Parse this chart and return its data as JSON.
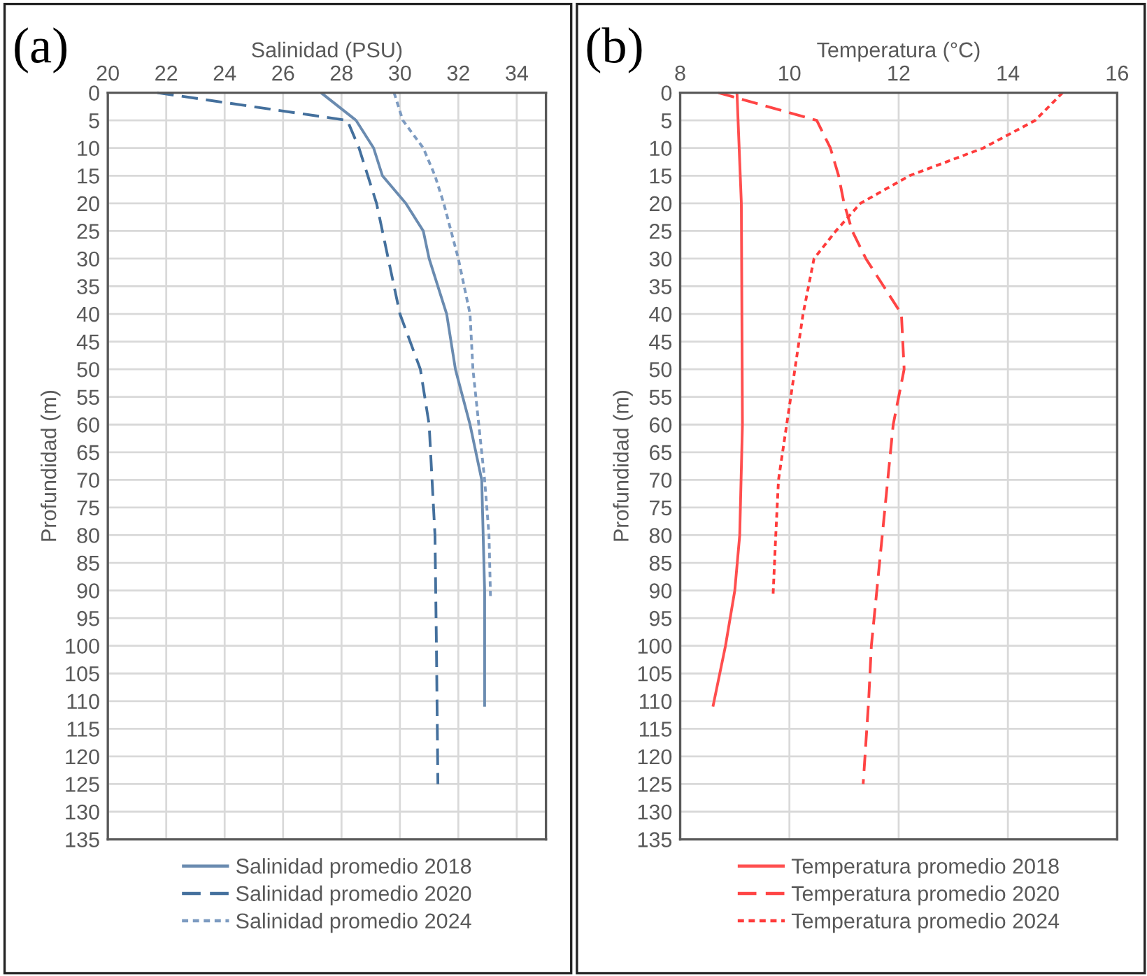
{
  "chart_data": [
    {
      "type": "line",
      "xlabel": "Salinidad (PSU)",
      "ylabel": "Profundidad (m)",
      "annotations": [
        "(a)"
      ],
      "xlim": [
        20,
        35
      ],
      "xticks": [
        20,
        22,
        24,
        26,
        28,
        30,
        32,
        34
      ],
      "ylim": [
        135,
        0
      ],
      "yticks": [
        0,
        5,
        10,
        15,
        20,
        25,
        30,
        35,
        40,
        45,
        50,
        55,
        60,
        65,
        70,
        75,
        80,
        85,
        90,
        95,
        100,
        105,
        110,
        115,
        120,
        125,
        130,
        135
      ],
      "grid": true,
      "legend": "bottom",
      "marker": "none",
      "series": [
        {
          "name": "Salinidad promedio 2018",
          "color": "#6a8bb0",
          "line_style": "solid",
          "x": [
            27.3,
            28.5,
            29.1,
            29.4,
            30.2,
            30.8,
            31.0,
            31.6,
            31.9,
            32.4,
            32.8,
            32.85,
            32.9,
            32.9
          ],
          "values": [
            0,
            5,
            10,
            15,
            20,
            25,
            30,
            40,
            50,
            60,
            70,
            80,
            90,
            111
          ]
        },
        {
          "name": "Salinidad promedio 2020",
          "color": "#44709d",
          "line_style": "dashed",
          "x": [
            21.7,
            28.2,
            28.6,
            29.2,
            29.6,
            30.0,
            30.7,
            31.0,
            31.1,
            31.2,
            31.25,
            31.3
          ],
          "values": [
            0,
            5,
            10,
            20,
            30,
            40,
            50,
            60,
            70,
            80,
            100,
            125
          ]
        },
        {
          "name": "Salinidad promedio 2024",
          "color": "#7d9bc1",
          "line_style": "dotted",
          "x": [
            29.8,
            30.1,
            30.8,
            31.2,
            31.5,
            32.0,
            32.4,
            32.5,
            32.7,
            32.9,
            33.05,
            33.1
          ],
          "values": [
            0,
            5,
            10,
            15,
            20,
            30,
            40,
            50,
            60,
            70,
            80,
            91
          ]
        }
      ]
    },
    {
      "type": "line",
      "xlabel": "Temperatura (°C)",
      "ylabel": "Profundidad (m)",
      "annotations": [
        "(b)"
      ],
      "xlim": [
        8,
        16
      ],
      "xticks": [
        8,
        10,
        12,
        14,
        16
      ],
      "ylim": [
        135,
        0
      ],
      "yticks": [
        0,
        5,
        10,
        15,
        20,
        25,
        30,
        35,
        40,
        45,
        50,
        55,
        60,
        65,
        70,
        75,
        80,
        85,
        90,
        95,
        100,
        105,
        110,
        115,
        120,
        125,
        130,
        135
      ],
      "grid": true,
      "legend": "bottom",
      "marker": "none",
      "series": [
        {
          "name": "Temperatura promedio 2018",
          "color": "#ff4f4f",
          "line_style": "solid",
          "x": [
            9.04,
            9.12,
            9.14,
            9.09,
            9.0,
            8.83,
            8.6
          ],
          "values": [
            0,
            20,
            60,
            80,
            90,
            100,
            111
          ]
        },
        {
          "name": "Temperatura promedio 2020",
          "color": "#ff4444",
          "line_style": "dashed",
          "x": [
            8.7,
            10.5,
            10.75,
            10.9,
            11.0,
            11.15,
            11.4,
            12.05,
            12.1,
            11.9,
            11.8,
            11.7,
            11.6,
            11.5,
            11.45,
            11.35
          ],
          "values": [
            0,
            5,
            10,
            15,
            20,
            25,
            30,
            40,
            50,
            60,
            70,
            80,
            90,
            100,
            110,
            125
          ]
        },
        {
          "name": "Temperatura promedio 2024",
          "color": "#ff3b3b",
          "line_style": "dotted",
          "x": [
            15.0,
            14.5,
            13.55,
            12.2,
            11.3,
            10.85,
            10.45,
            10.25,
            10.1,
            9.95,
            9.8,
            9.75,
            9.7
          ],
          "values": [
            0,
            5,
            10,
            15,
            20,
            25,
            30,
            40,
            50,
            60,
            70,
            80,
            91
          ]
        }
      ]
    }
  ]
}
